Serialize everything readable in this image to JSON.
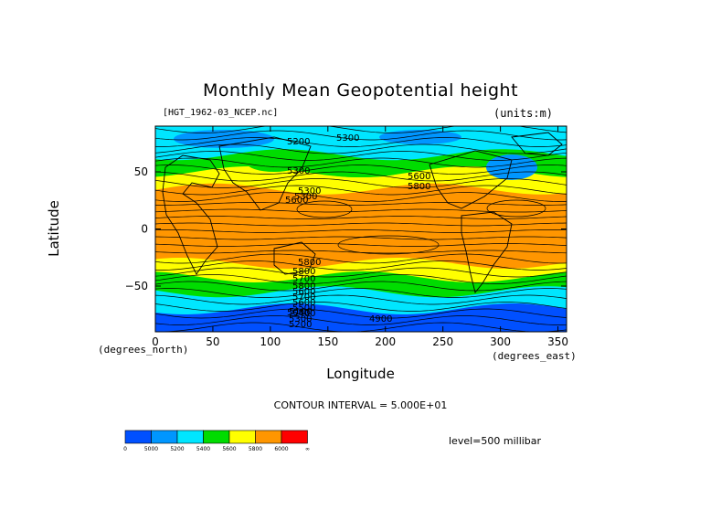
{
  "chart_data": {
    "type": "heatmap",
    "title": "Monthly Mean Geopotential height",
    "file_label": "[HGT_1962-03_NCEP.nc]",
    "units_label": "(units:m)",
    "xlabel": "Longitude",
    "ylabel": "Latitude",
    "x_unit": "(degrees_east)",
    "y_unit": "(degrees_north)",
    "xlim": [
      0,
      357.5
    ],
    "ylim": [
      -90,
      90
    ],
    "x_ticks": [
      0,
      50,
      100,
      150,
      200,
      250,
      300,
      350
    ],
    "y_ticks": [
      50,
      0,
      -50
    ],
    "y_tick_labels": [
      "50",
      "0",
      "−50"
    ],
    "contour_interval_text": "CONTOUR INTERVAL = 5.000E+01",
    "level_text": "level=500 millibar",
    "contour_labels": [
      "5200",
      "5300",
      "5300",
      "5300",
      "5300",
      "5600",
      "5800",
      "5600",
      "5800",
      "5800",
      "5700",
      "5800",
      "5600",
      "5700",
      "5600",
      "5500",
      "5400",
      "5300",
      "5200",
      "5100",
      "5000",
      "4900"
    ],
    "bands": [
      {
        "lat_top": 90,
        "lat_bottom": 65,
        "value": "5200-5400"
      },
      {
        "lat_top": 65,
        "lat_bottom": 50,
        "value": "5400-5600"
      },
      {
        "lat_top": 50,
        "lat_bottom": 35,
        "value": "5600-5800"
      },
      {
        "lat_top": 35,
        "lat_bottom": -30,
        "value": ">5800"
      },
      {
        "lat_top": -30,
        "lat_bottom": -42,
        "value": "5600-5800"
      },
      {
        "lat_top": -42,
        "lat_bottom": -55,
        "value": "5400-5600"
      },
      {
        "lat_top": -55,
        "lat_bottom": -70,
        "value": "5200-5400"
      },
      {
        "lat_top": -70,
        "lat_bottom": -90,
        "value": "<5000"
      }
    ],
    "colorbar": {
      "colors": [
        "#0050ff",
        "#0096ff",
        "#00e6ff",
        "#00dc00",
        "#ffff00",
        "#ff9600",
        "#ff0000"
      ],
      "tick_labels": [
        "0",
        "5000",
        "5200",
        "5400",
        "5600",
        "5800",
        "6000",
        "∞"
      ]
    },
    "grid": false
  }
}
